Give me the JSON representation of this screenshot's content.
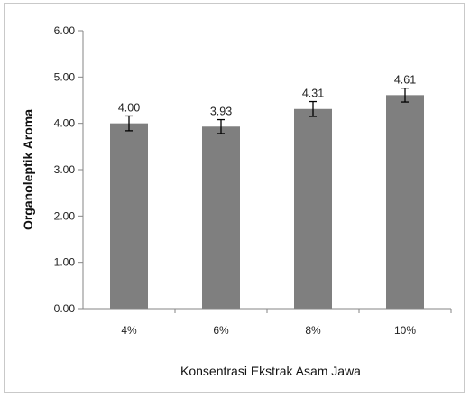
{
  "chart_data": {
    "type": "bar",
    "categories": [
      "4%",
      "6%",
      "8%",
      "10%"
    ],
    "values": [
      4.0,
      3.93,
      4.31,
      4.61
    ],
    "value_labels": [
      "4.00",
      "3.93",
      "4.31",
      "4.61"
    ],
    "error": [
      0.16,
      0.15,
      0.16,
      0.15
    ],
    "title": "",
    "xlabel": "Konsentrasi Ekstrak Asam Jawa",
    "ylabel": "Organoleptik Aroma",
    "ylim": [
      0,
      6
    ],
    "yticks": [
      0,
      1,
      2,
      3,
      4,
      5,
      6
    ],
    "ytick_labels": [
      "0.00",
      "1.00",
      "2.00",
      "3.00",
      "4.00",
      "5.00",
      "6.00"
    ],
    "grid": false,
    "legend": "none",
    "bar_color": "#7f7f7f",
    "axis_color": "#868686",
    "error_bar_color": "#000000"
  }
}
